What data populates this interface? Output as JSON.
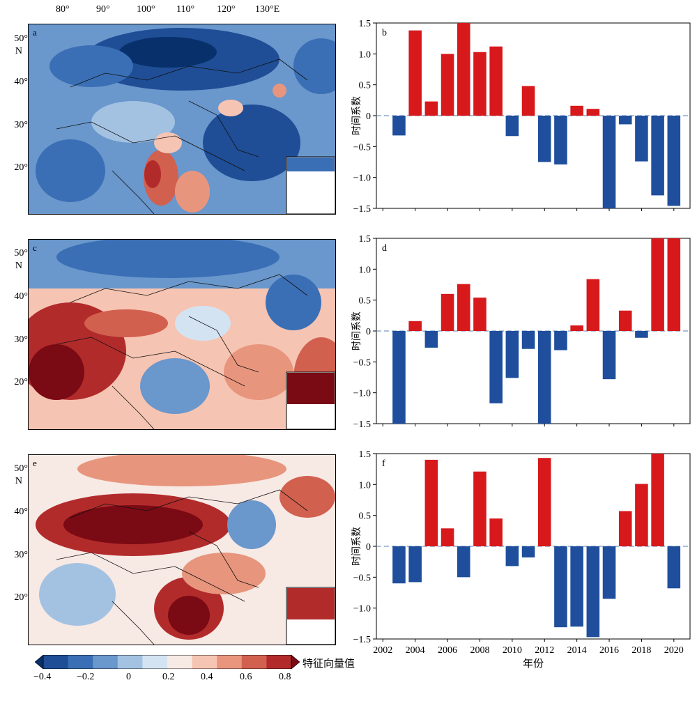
{
  "longitude_labels": [
    "80°",
    "90°",
    "100°",
    "110°",
    "120°",
    "130°E"
  ],
  "latitude_labels": [
    "50°",
    "N",
    "40°",
    "30°",
    "20°"
  ],
  "colorbar": {
    "title": "特征向量值",
    "ticks": [
      "−0.4",
      "−0.2",
      "0",
      "0.2",
      "0.4",
      "0.6",
      "0.8"
    ],
    "colors": [
      "#08306b",
      "#1f4e96",
      "#3a6fb5",
      "#6a97cc",
      "#a3c2e2",
      "#d4e3f2",
      "#f7e9e4",
      "#f6c4b2",
      "#e8957e",
      "#d2604f",
      "#b22b2b",
      "#7a0a14"
    ]
  },
  "maps": [
    {
      "label": "a"
    },
    {
      "label": "c"
    },
    {
      "label": "e"
    }
  ],
  "chart_data": [
    {
      "type": "bar",
      "panel_label": "b",
      "ylabel": "时间系数",
      "xlabel": "",
      "ylim": [
        -1.5,
        1.5
      ],
      "yticks": [
        "−1.5",
        "−1.0",
        "−0.5",
        "0",
        "0.5",
        "1.0",
        "1.5"
      ],
      "x": [
        2003,
        2004,
        2005,
        2006,
        2007,
        2008,
        2009,
        2010,
        2011,
        2012,
        2013,
        2014,
        2015,
        2016,
        2017,
        2018,
        2019,
        2020
      ],
      "values": [
        -0.32,
        1.38,
        0.23,
        1.0,
        1.5,
        1.03,
        1.12,
        -0.33,
        0.48,
        -0.75,
        -0.79,
        0.16,
        0.11,
        -1.5,
        -0.14,
        -0.74,
        -1.29,
        -1.46
      ],
      "positive_color": "#d7191c",
      "negative_color": "#1f4e9c"
    },
    {
      "type": "bar",
      "panel_label": "d",
      "ylabel": "时间系数",
      "xlabel": "",
      "ylim": [
        -1.5,
        1.5
      ],
      "yticks": [
        "−1.5",
        "−1.0",
        "−0.5",
        "0",
        "0.5",
        "1.0",
        "1.5"
      ],
      "x": [
        2003,
        2004,
        2005,
        2006,
        2007,
        2008,
        2009,
        2010,
        2011,
        2012,
        2013,
        2014,
        2015,
        2016,
        2017,
        2018,
        2019,
        2020
      ],
      "values": [
        -1.5,
        0.16,
        -0.27,
        0.6,
        0.76,
        0.54,
        -1.17,
        -0.76,
        -0.29,
        -1.5,
        -0.31,
        0.09,
        0.84,
        -0.78,
        0.33,
        -0.11,
        1.5,
        1.5
      ],
      "positive_color": "#d7191c",
      "negative_color": "#1f4e9c"
    },
    {
      "type": "bar",
      "panel_label": "f",
      "ylabel": "时间系数",
      "xlabel": "年份",
      "ylim": [
        -1.5,
        1.5
      ],
      "yticks": [
        "−1.5",
        "−1.0",
        "−0.5",
        "0",
        "0.5",
        "1.0",
        "1.5"
      ],
      "xtick_labels": [
        "2002",
        "2004",
        "2006",
        "2008",
        "2010",
        "2012",
        "2014",
        "2016",
        "2018",
        "2020"
      ],
      "x": [
        2003,
        2004,
        2005,
        2006,
        2007,
        2008,
        2009,
        2010,
        2011,
        2012,
        2013,
        2014,
        2015,
        2016,
        2017,
        2018,
        2019,
        2020
      ],
      "values": [
        -0.6,
        -0.58,
        1.4,
        0.29,
        -0.5,
        1.21,
        0.45,
        -0.32,
        -0.18,
        1.43,
        -1.31,
        -1.3,
        -1.47,
        -0.85,
        0.57,
        1.01,
        1.5,
        -0.68
      ],
      "positive_color": "#d7191c",
      "negative_color": "#1f4e9c"
    }
  ]
}
